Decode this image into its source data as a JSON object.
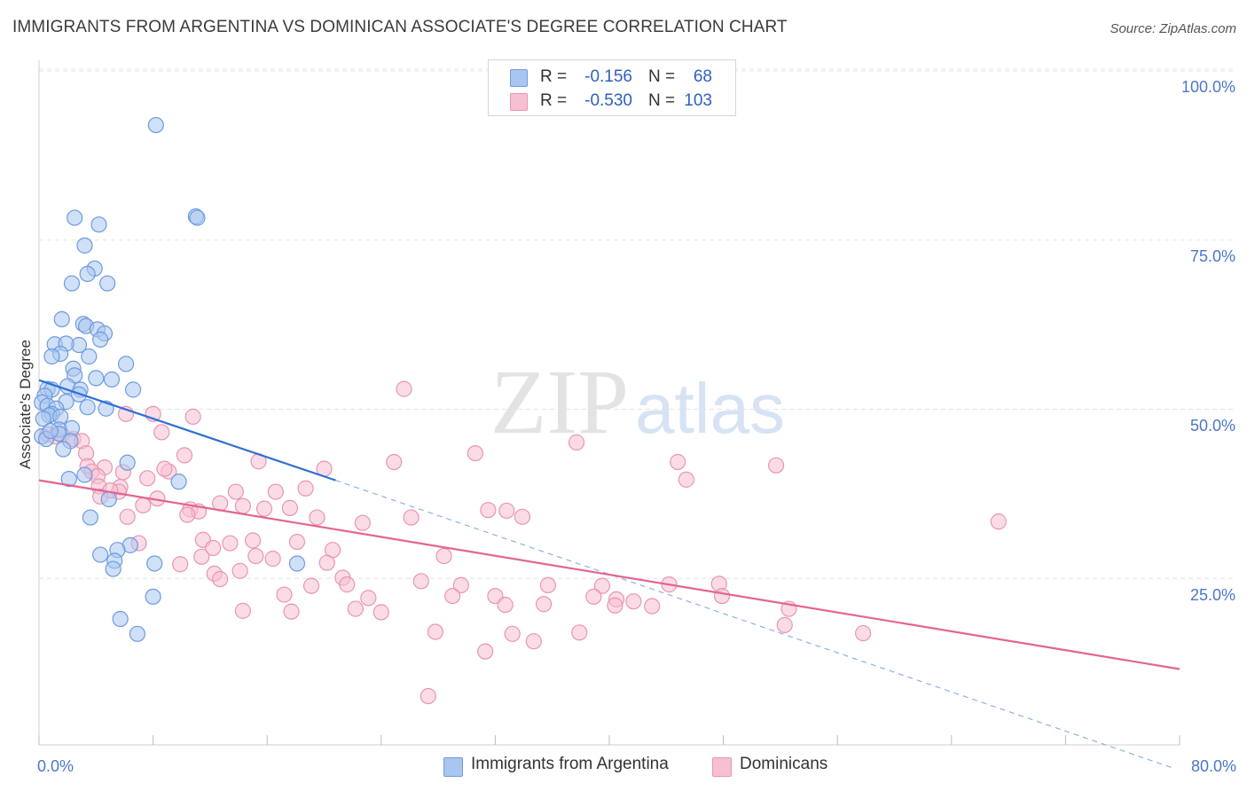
{
  "title": "IMMIGRANTS FROM ARGENTINA VS DOMINICAN ASSOCIATE'S DEGREE CORRELATION CHART",
  "source": "Source: ZipAtlas.com",
  "watermark": {
    "zip": "ZIP",
    "atlas": "atlas"
  },
  "legend": {
    "rows": [
      {
        "r_label": "R =",
        "r_value": "-0.156",
        "n_label": "N =",
        "n_value": "68"
      },
      {
        "r_label": "R =",
        "r_value": "-0.530",
        "n_label": "N =",
        "n_value": "103"
      }
    ]
  },
  "bottom_legend": {
    "items": [
      "Immigrants from Argentina",
      "Dominicans"
    ]
  },
  "chart_data": {
    "type": "scatter",
    "title": "IMMIGRANTS FROM ARGENTINA VS DOMINICAN ASSOCIATE'S DEGREE CORRELATION CHART",
    "xlabel": "",
    "ylabel": "Associate's Degree",
    "xlim": [
      0,
      80
    ],
    "ylim": [
      0,
      105
    ],
    "x_tick_labels": [
      "0.0%",
      "80.0%"
    ],
    "y_ticks": [
      25,
      50,
      75,
      100
    ],
    "y_tick_labels": [
      "25.0%",
      "50.0%",
      "75.0%",
      "100.0%"
    ],
    "grid": true,
    "legend_position": "top-center",
    "colors": {
      "argentina_fill": "#a9c6f0",
      "argentina_stroke": "#6d9be0",
      "argentina_line": "#2f6fd6",
      "dominican_fill": "#f7c0d2",
      "dominican_stroke": "#ea94b3",
      "dominican_line": "#e2658f",
      "tick_label": "#4a77c9",
      "grid": "#e4e4e4"
    },
    "series": [
      {
        "name": "Immigrants from Argentina",
        "trend": {
          "x0": 0.0,
          "y0": 54.3,
          "x1": 20.8,
          "y1": 39.5,
          "dash_to_x": 79.5,
          "dash_to_y": -3.0
        },
        "points": [
          [
            8.2,
            92.0
          ],
          [
            11.0,
            78.5
          ],
          [
            11.1,
            78.3
          ],
          [
            2.5,
            78.3
          ],
          [
            4.2,
            77.3
          ],
          [
            3.2,
            74.2
          ],
          [
            3.9,
            70.8
          ],
          [
            3.4,
            70.0
          ],
          [
            2.3,
            68.6
          ],
          [
            4.8,
            68.6
          ],
          [
            1.6,
            63.3
          ],
          [
            3.1,
            62.6
          ],
          [
            3.3,
            62.3
          ],
          [
            4.1,
            61.8
          ],
          [
            4.6,
            61.2
          ],
          [
            4.3,
            60.3
          ],
          [
            1.1,
            59.6
          ],
          [
            2.8,
            59.5
          ],
          [
            1.9,
            59.7
          ],
          [
            1.5,
            58.2
          ],
          [
            0.9,
            57.8
          ],
          [
            3.5,
            57.8
          ],
          [
            6.1,
            56.7
          ],
          [
            2.4,
            56.0
          ],
          [
            2.5,
            55.0
          ],
          [
            4.0,
            54.6
          ],
          [
            5.1,
            54.4
          ],
          [
            2.0,
            53.4
          ],
          [
            0.6,
            53.0
          ],
          [
            0.9,
            52.9
          ],
          [
            6.6,
            52.9
          ],
          [
            2.9,
            52.9
          ],
          [
            2.8,
            52.2
          ],
          [
            0.4,
            52.0
          ],
          [
            1.9,
            51.1
          ],
          [
            0.2,
            51.0
          ],
          [
            0.6,
            50.5
          ],
          [
            1.2,
            50.1
          ],
          [
            3.4,
            50.3
          ],
          [
            4.7,
            50.1
          ],
          [
            0.9,
            49.3
          ],
          [
            0.7,
            49.1
          ],
          [
            1.5,
            48.9
          ],
          [
            0.3,
            48.6
          ],
          [
            2.3,
            47.2
          ],
          [
            1.4,
            47.0
          ],
          [
            1.4,
            46.4
          ],
          [
            2.2,
            45.3
          ],
          [
            1.7,
            44.1
          ],
          [
            6.2,
            42.1
          ],
          [
            3.2,
            40.3
          ],
          [
            9.8,
            39.3
          ],
          [
            2.1,
            39.7
          ],
          [
            4.9,
            36.7
          ],
          [
            3.6,
            34.0
          ],
          [
            6.4,
            29.9
          ],
          [
            5.5,
            29.2
          ],
          [
            4.3,
            28.5
          ],
          [
            5.3,
            27.6
          ],
          [
            8.1,
            27.2
          ],
          [
            18.1,
            27.2
          ],
          [
            5.2,
            26.4
          ],
          [
            8.0,
            22.3
          ],
          [
            5.7,
            19.0
          ],
          [
            6.9,
            16.8
          ],
          [
            0.2,
            46.0
          ],
          [
            0.5,
            45.6
          ],
          [
            0.8,
            46.8
          ]
        ]
      },
      {
        "name": "Dominicans",
        "trend": {
          "x0": 0.0,
          "y0": 39.5,
          "x1": 80.0,
          "y1": 11.6
        },
        "points": [
          [
            25.6,
            53.0
          ],
          [
            6.1,
            49.3
          ],
          [
            8.0,
            49.3
          ],
          [
            10.8,
            48.9
          ],
          [
            8.6,
            46.6
          ],
          [
            0.6,
            46.3
          ],
          [
            1.1,
            46.0
          ],
          [
            1.6,
            46.2
          ],
          [
            2.4,
            45.6
          ],
          [
            3.0,
            45.3
          ],
          [
            3.3,
            43.5
          ],
          [
            37.7,
            45.1
          ],
          [
            30.6,
            43.5
          ],
          [
            10.2,
            43.2
          ],
          [
            15.4,
            42.3
          ],
          [
            24.9,
            42.2
          ],
          [
            44.8,
            42.2
          ],
          [
            51.7,
            41.7
          ],
          [
            20.0,
            41.2
          ],
          [
            3.4,
            41.6
          ],
          [
            4.6,
            41.4
          ],
          [
            9.1,
            40.8
          ],
          [
            8.8,
            41.2
          ],
          [
            3.7,
            40.8
          ],
          [
            5.9,
            40.7
          ],
          [
            4.1,
            40.1
          ],
          [
            7.6,
            39.8
          ],
          [
            45.4,
            39.6
          ],
          [
            4.2,
            38.6
          ],
          [
            5.7,
            38.5
          ],
          [
            5.6,
            37.8
          ],
          [
            18.7,
            38.3
          ],
          [
            13.8,
            37.8
          ],
          [
            5.0,
            38.0
          ],
          [
            16.6,
            37.8
          ],
          [
            4.3,
            37.1
          ],
          [
            8.3,
            36.8
          ],
          [
            7.3,
            35.8
          ],
          [
            12.7,
            36.1
          ],
          [
            14.3,
            35.7
          ],
          [
            17.6,
            35.4
          ],
          [
            15.8,
            35.3
          ],
          [
            10.6,
            35.2
          ],
          [
            11.2,
            34.9
          ],
          [
            10.4,
            34.4
          ],
          [
            6.2,
            34.1
          ],
          [
            19.5,
            34.0
          ],
          [
            26.1,
            34.0
          ],
          [
            31.5,
            35.1
          ],
          [
            32.8,
            35.0
          ],
          [
            33.9,
            34.1
          ],
          [
            22.7,
            33.2
          ],
          [
            67.3,
            33.4
          ],
          [
            11.5,
            30.7
          ],
          [
            13.4,
            30.2
          ],
          [
            15.0,
            30.6
          ],
          [
            18.1,
            30.4
          ],
          [
            7.0,
            30.2
          ],
          [
            12.2,
            29.5
          ],
          [
            20.6,
            29.2
          ],
          [
            11.4,
            28.2
          ],
          [
            15.2,
            28.3
          ],
          [
            16.4,
            27.9
          ],
          [
            28.4,
            28.3
          ],
          [
            20.2,
            27.3
          ],
          [
            9.9,
            27.1
          ],
          [
            14.1,
            26.1
          ],
          [
            12.3,
            25.7
          ],
          [
            12.7,
            24.9
          ],
          [
            21.3,
            25.1
          ],
          [
            21.6,
            24.1
          ],
          [
            26.8,
            24.6
          ],
          [
            29.6,
            24.0
          ],
          [
            35.7,
            24.0
          ],
          [
            39.5,
            23.9
          ],
          [
            44.2,
            24.1
          ],
          [
            47.7,
            24.2
          ],
          [
            17.2,
            22.6
          ],
          [
            19.1,
            23.9
          ],
          [
            23.1,
            22.1
          ],
          [
            29.0,
            22.4
          ],
          [
            32.0,
            22.4
          ],
          [
            38.9,
            22.3
          ],
          [
            40.5,
            21.9
          ],
          [
            41.7,
            21.6
          ],
          [
            47.9,
            22.4
          ],
          [
            32.7,
            21.1
          ],
          [
            35.4,
            21.2
          ],
          [
            40.4,
            21.0
          ],
          [
            43.0,
            20.9
          ],
          [
            22.2,
            20.5
          ],
          [
            24.0,
            20.0
          ],
          [
            14.3,
            20.2
          ],
          [
            17.7,
            20.1
          ],
          [
            52.6,
            20.5
          ],
          [
            52.3,
            18.1
          ],
          [
            27.8,
            17.1
          ],
          [
            33.2,
            16.8
          ],
          [
            37.9,
            17.0
          ],
          [
            34.7,
            15.7
          ],
          [
            31.3,
            14.2
          ],
          [
            57.8,
            16.9
          ],
          [
            27.3,
            7.6
          ]
        ]
      }
    ]
  }
}
